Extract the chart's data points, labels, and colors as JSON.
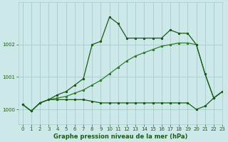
{
  "title": "Graphe pression niveau de la mer (hPa)",
  "background_color": "#cce8e8",
  "grid_color": "#aacccc",
  "line_color_dark": "#1a5c1a",
  "line_color_med": "#2e7d32",
  "xlim": [
    -0.5,
    23
  ],
  "ylim": [
    999.55,
    1003.3
  ],
  "yticks": [
    1000,
    1001,
    1002
  ],
  "xticks": [
    0,
    1,
    2,
    3,
    4,
    5,
    6,
    7,
    8,
    9,
    10,
    11,
    12,
    13,
    14,
    15,
    16,
    17,
    18,
    19,
    20,
    21,
    22,
    23
  ],
  "series1_x": [
    0,
    1,
    2,
    3,
    4,
    5,
    6,
    7,
    8,
    9,
    10,
    11,
    12,
    13,
    14,
    15,
    16,
    17,
    18,
    19,
    20,
    21,
    22,
    23
  ],
  "series1_y": [
    1000.15,
    999.95,
    1000.2,
    1000.3,
    1000.45,
    1000.55,
    1000.75,
    1000.95,
    1002.0,
    1002.1,
    1002.85,
    1002.65,
    1002.2,
    1002.2,
    1002.2,
    1002.2,
    1002.2,
    1002.45,
    1002.35,
    1002.35,
    1002.0,
    1001.1,
    1000.35,
    1000.55
  ],
  "series2_x": [
    0,
    1,
    2,
    3,
    4,
    5,
    6,
    7,
    8,
    9,
    10,
    11,
    12,
    13,
    14,
    15,
    16,
    17,
    18,
    19,
    20,
    21,
    22,
    23
  ],
  "series2_y": [
    1000.15,
    999.95,
    1000.2,
    1000.3,
    1000.35,
    1000.4,
    1000.5,
    1000.6,
    1000.75,
    1000.9,
    1001.1,
    1001.3,
    1001.5,
    1001.65,
    1001.75,
    1001.85,
    1001.95,
    1002.0,
    1002.05,
    1002.05,
    1002.0,
    1001.1,
    1000.35,
    1000.55
  ],
  "series3_x": [
    0,
    1,
    2,
    3,
    4,
    5,
    6,
    7,
    8,
    9,
    10,
    11,
    12,
    13,
    14,
    15,
    16,
    17,
    18,
    19,
    20,
    21,
    22,
    23
  ],
  "series3_y": [
    1000.15,
    999.95,
    1000.2,
    1000.3,
    1000.3,
    1000.3,
    1000.3,
    1000.3,
    1000.25,
    1000.2,
    1000.2,
    1000.2,
    1000.2,
    1000.2,
    1000.2,
    1000.2,
    1000.2,
    1000.2,
    1000.2,
    1000.2,
    1000.0,
    1000.1,
    1000.35,
    1000.55
  ],
  "xlabel_fontsize": 6.0,
  "tick_fontsize": 5.0,
  "lw": 0.9,
  "ms": 2.0
}
